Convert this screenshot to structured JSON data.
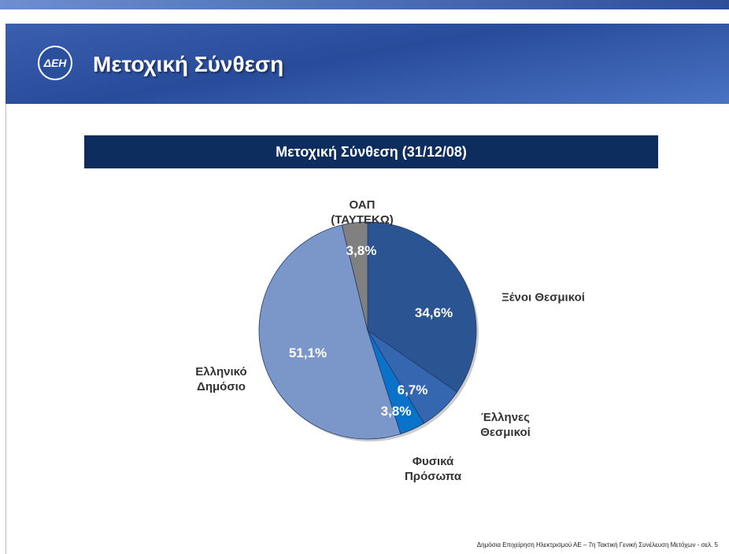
{
  "header": {
    "title": "Μετοχική Σύνθεση",
    "logo": "ΔΕΗ"
  },
  "chart_data": {
    "type": "pie",
    "title": "Μετοχική Σύνθεση (31/12/08)",
    "categories": [
      "Ξένοι Θεσμικοί",
      "Έλληνες\nΘεσμικοί",
      "Φυσικά\nΠρόσωπα",
      "Ελληνικό\nΔημόσιο",
      "ΟΑΠ\n(ΤΑΥΤΕΚΩ)"
    ],
    "values": [
      34.6,
      6.7,
      3.8,
      51.1,
      3.8
    ],
    "value_labels": [
      "34,6%",
      "6,7%",
      "3,8%",
      "51,1%",
      "3,8%"
    ],
    "colors": [
      "#2b5592",
      "#3467b0",
      "#0a72c9",
      "#7b97c9",
      "#808080"
    ]
  },
  "footer": "Δημόσια Επιχείρηση Ηλεκτρισμού ΑΕ – 7η Τακτική Γενική Συνέλευση Μετόχων  - σελ. 5"
}
